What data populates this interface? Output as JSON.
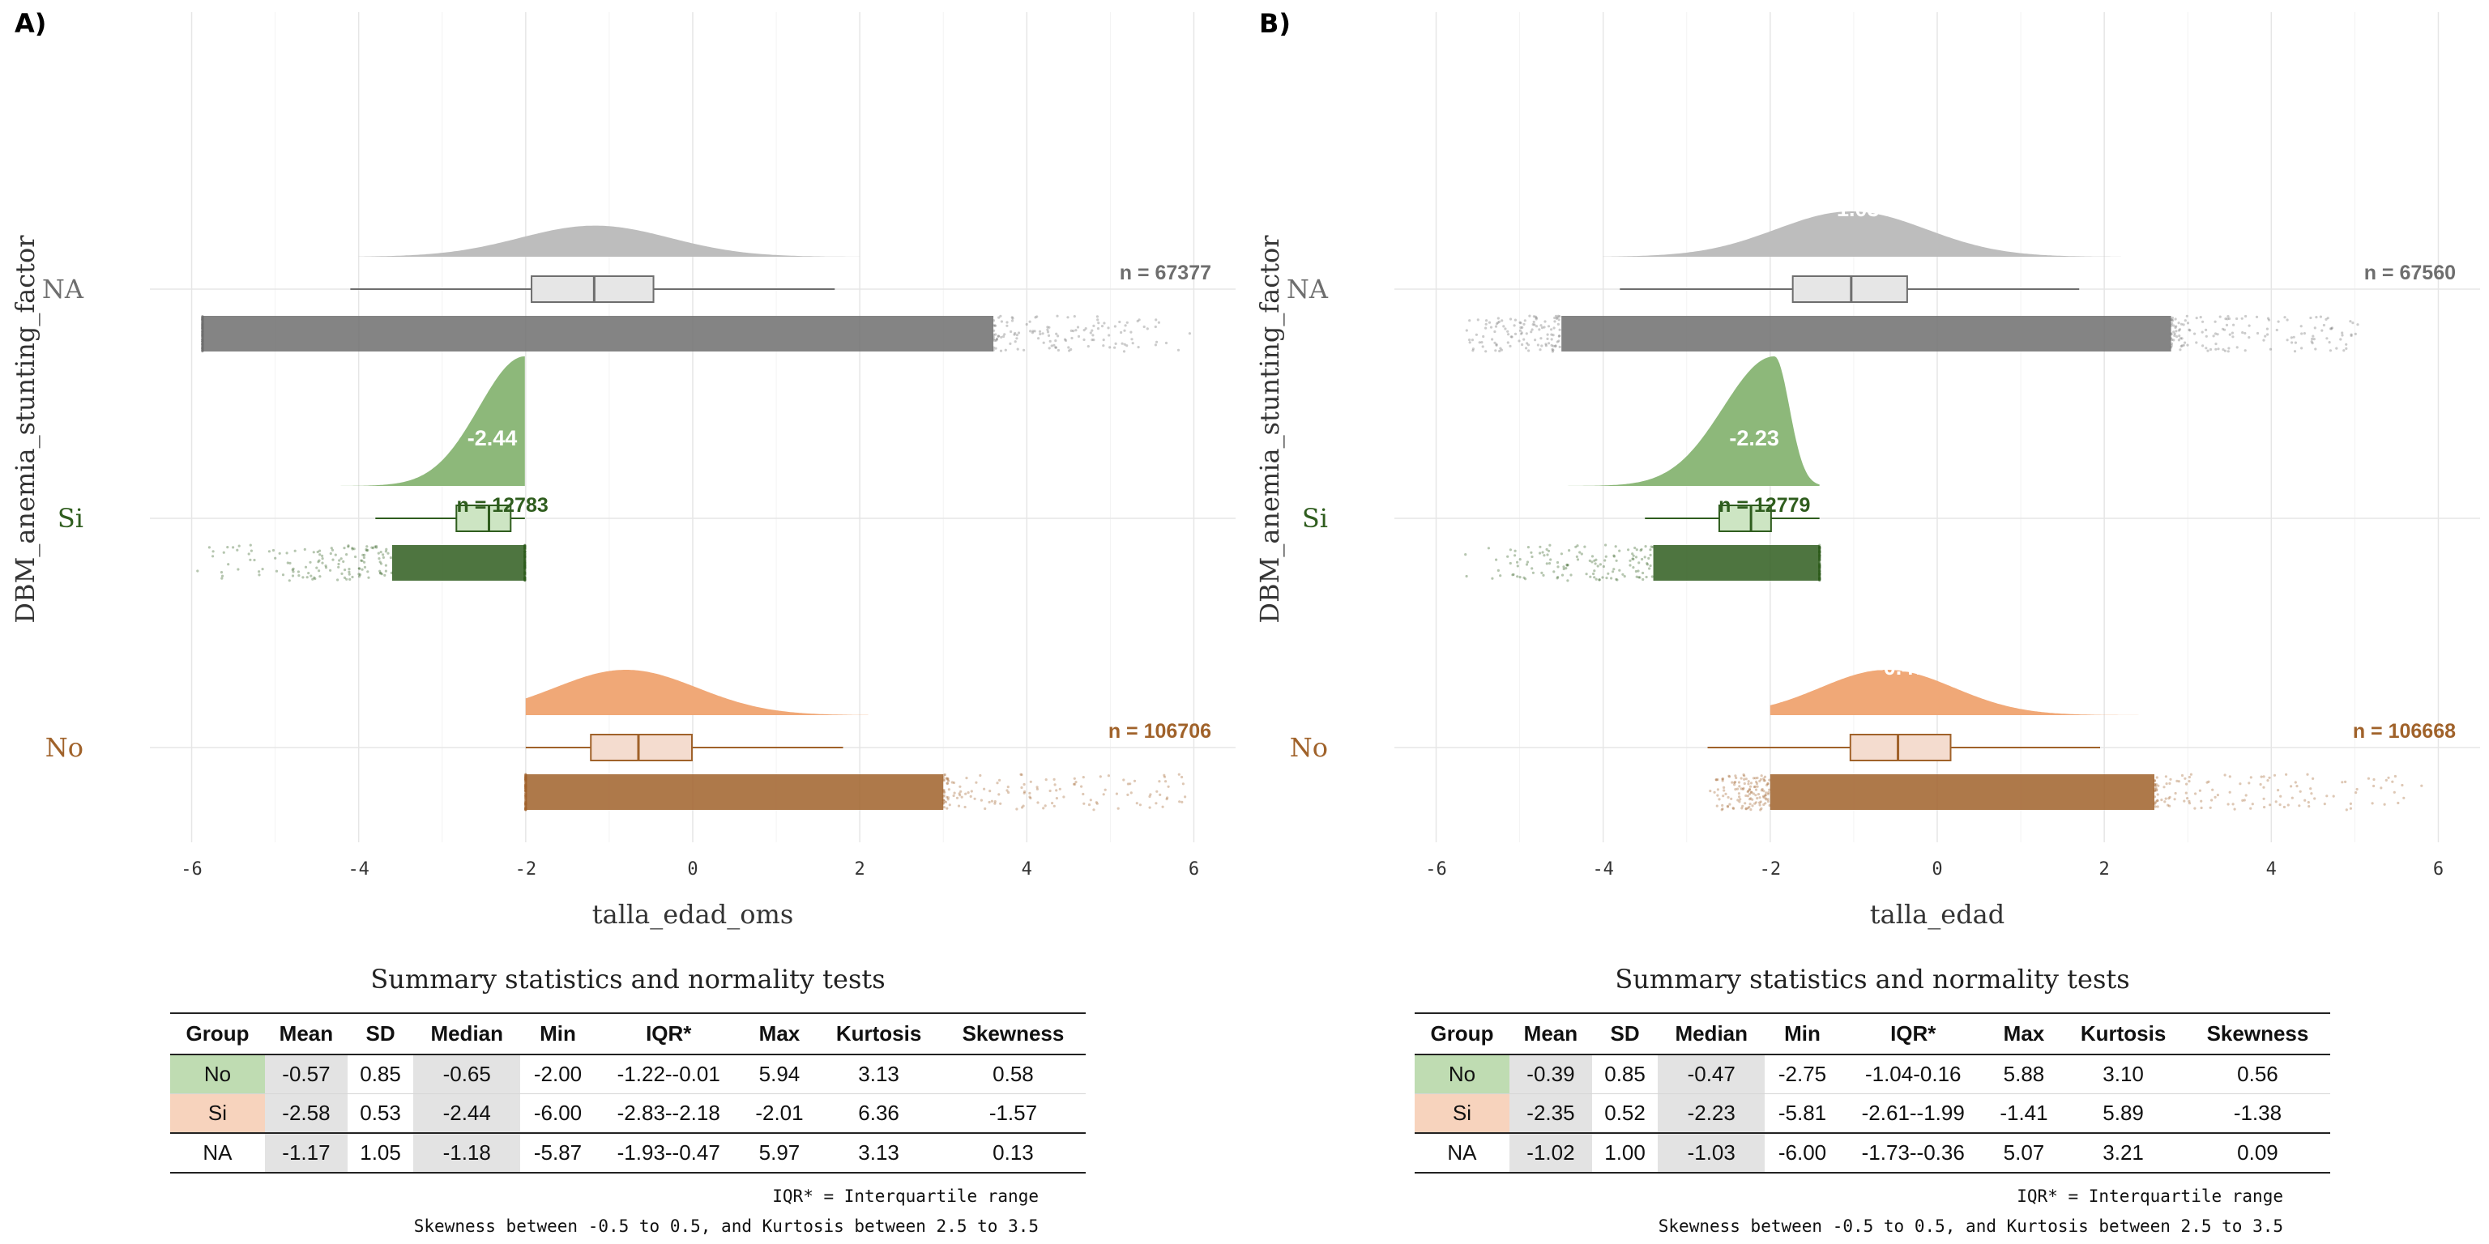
{
  "colors": {
    "No": "#a0622a",
    "Si": "#2f5d1e",
    "NA": "#6e6e6e"
  },
  "panels": [
    {
      "label": "A)",
      "chart_data": {
        "type": "raincloud",
        "xlabel": "talla_edad_oms",
        "ylabel": "DBM_anemia_stunting_factor",
        "xlim": [
          -6.5,
          6.5
        ],
        "xticks": [
          -6,
          -4,
          -2,
          0,
          2,
          4,
          6
        ],
        "groups": [
          {
            "name": "NA",
            "n_label": "n = 67377",
            "median": -1.18,
            "median_label": "",
            "q1": -1.93,
            "q3": -0.47,
            "whisker_low": -4.1,
            "whisker_high": 1.7,
            "range": [
              -5.87,
              5.97
            ],
            "density_range": [
              -4.0,
              2.0
            ],
            "density_peak": -1.17,
            "density_sd": 0.9,
            "shape": "normal",
            "cloud_dense": [
              -5.87,
              3.6
            ]
          },
          {
            "name": "Si",
            "n_label": "n = 12783",
            "median": -2.44,
            "median_label": "-2.44",
            "q1": -2.83,
            "q3": -2.18,
            "whisker_low": -3.8,
            "whisker_high": -2.01,
            "range": [
              -6.0,
              -2.01
            ],
            "density_range": [
              -6.0,
              -2.01
            ],
            "density_peak": -2.01,
            "density_sd": 0.5,
            "shape": "truncated",
            "cloud_dense": [
              -3.6,
              -2.01
            ]
          },
          {
            "name": "No",
            "n_label": "n = 106706",
            "median": -0.65,
            "median_label": "",
            "q1": -1.22,
            "q3": -0.01,
            "whisker_low": -2.0,
            "whisker_high": 1.8,
            "range": [
              -2.0,
              5.94
            ],
            "density_range": [
              -2.0,
              2.1
            ],
            "density_peak": -0.8,
            "density_sd": 0.85,
            "shape": "leftcut",
            "cloud_dense": [
              -2.0,
              3.0
            ]
          }
        ]
      },
      "table": {
        "title": "Summary statistics and normality tests",
        "columns": [
          "Group",
          "Mean",
          "SD",
          "Median",
          "Min",
          "IQR*",
          "Max",
          "Kurtosis",
          "Skewness"
        ],
        "rows": [
          {
            "group": "No",
            "mean": "-0.57",
            "sd": "0.85",
            "median": "-0.65",
            "min": "-2.00",
            "iqr": "-1.22--0.01",
            "max": "5.94",
            "kurtosis": "3.13",
            "skewness": "0.58",
            "group_color": "#bfdcb2"
          },
          {
            "group": "Si",
            "mean": "-2.58",
            "sd": "0.53",
            "median": "-2.44",
            "min": "-6.00",
            "iqr": "-2.83--2.18",
            "max": "-2.01",
            "kurtosis": "6.36",
            "skewness": "-1.57",
            "group_color": "#f7d3bd"
          },
          {
            "group": "NA",
            "mean": "-1.17",
            "sd": "1.05",
            "median": "-1.18",
            "min": "-5.87",
            "iqr": "-1.93--0.47",
            "max": "5.97",
            "kurtosis": "3.13",
            "skewness": "0.13",
            "group_color": "#ffffff"
          }
        ],
        "note1": "IQR* = Interquartile range",
        "note2": "Skewness between -0.5 to 0.5, and Kurtosis between 2.5 to 3.5"
      }
    },
    {
      "label": "B)",
      "chart_data": {
        "type": "raincloud",
        "xlabel": "talla_edad",
        "ylabel": "DBM_anemia_stunting_factor",
        "xlim": [
          -6.5,
          6.5
        ],
        "xticks": [
          -6,
          -4,
          -2,
          0,
          2,
          4,
          6
        ],
        "groups": [
          {
            "name": "NA",
            "n_label": "n = 67560",
            "median": -1.03,
            "median_label": "-1.03",
            "q1": -1.73,
            "q3": -0.36,
            "whisker_low": -3.8,
            "whisker_high": 1.7,
            "range": [
              -6.0,
              5.07
            ],
            "density_range": [
              -4.0,
              2.2
            ],
            "density_peak": -1.03,
            "density_sd": 0.9,
            "shape": "normal",
            "cloud_dense": [
              -4.5,
              2.8
            ]
          },
          {
            "name": "Si",
            "n_label": "n = 12779",
            "median": -2.23,
            "median_label": "-2.23",
            "q1": -2.61,
            "q3": -1.99,
            "whisker_low": -3.5,
            "whisker_high": -1.41,
            "range": [
              -5.81,
              -1.41
            ],
            "density_range": [
              -5.81,
              -1.41
            ],
            "density_peak": -1.95,
            "density_sd": 0.5,
            "shape": "skewleft",
            "cloud_dense": [
              -3.4,
              -1.41
            ]
          },
          {
            "name": "No",
            "n_label": "n = 106668",
            "median": -0.47,
            "median_label": "-0.47",
            "q1": -1.04,
            "q3": 0.16,
            "whisker_low": -2.75,
            "whisker_high": 1.95,
            "range": [
              -2.75,
              5.88
            ],
            "density_range": [
              -2.0,
              2.5
            ],
            "density_peak": -0.6,
            "density_sd": 0.8,
            "shape": "leftcut",
            "cloud_dense": [
              -2.0,
              2.6
            ]
          }
        ]
      },
      "table": {
        "title": "Summary statistics and normality tests",
        "columns": [
          "Group",
          "Mean",
          "SD",
          "Median",
          "Min",
          "IQR*",
          "Max",
          "Kurtosis",
          "Skewness"
        ],
        "rows": [
          {
            "group": "No",
            "mean": "-0.39",
            "sd": "0.85",
            "median": "-0.47",
            "min": "-2.75",
            "iqr": "-1.04-0.16",
            "max": "5.88",
            "kurtosis": "3.10",
            "skewness": "0.56",
            "group_color": "#bfdcb2"
          },
          {
            "group": "Si",
            "mean": "-2.35",
            "sd": "0.52",
            "median": "-2.23",
            "min": "-5.81",
            "iqr": "-2.61--1.99",
            "max": "-1.41",
            "kurtosis": "5.89",
            "skewness": "-1.38",
            "group_color": "#f7d3bd"
          },
          {
            "group": "NA",
            "mean": "-1.02",
            "sd": "1.00",
            "median": "-1.03",
            "min": "-6.00",
            "iqr": "-1.73--0.36",
            "max": "5.07",
            "kurtosis": "3.21",
            "skewness": "0.09",
            "group_color": "#ffffff"
          }
        ],
        "note1": "IQR* = Interquartile range",
        "note2": "Skewness between -0.5 to 0.5, and Kurtosis between 2.5 to 3.5"
      }
    }
  ]
}
